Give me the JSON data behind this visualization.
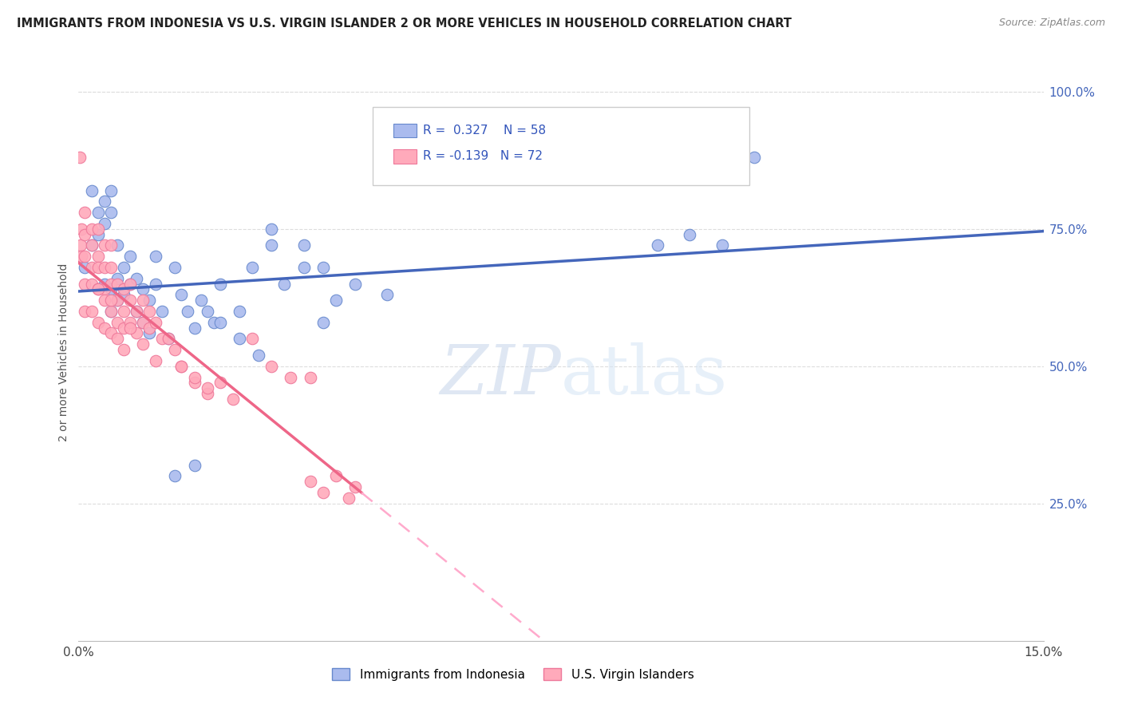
{
  "title": "IMMIGRANTS FROM INDONESIA VS U.S. VIRGIN ISLANDER 2 OR MORE VEHICLES IN HOUSEHOLD CORRELATION CHART",
  "source": "Source: ZipAtlas.com",
  "ylabel_label": "2 or more Vehicles in Household",
  "x_min": 0.0,
  "x_max": 0.15,
  "y_min": 0.0,
  "y_max": 1.05,
  "x_ticks": [
    0.0,
    0.03,
    0.06,
    0.09,
    0.12,
    0.15
  ],
  "y_ticks_right": [
    0.25,
    0.5,
    0.75,
    1.0
  ],
  "blue_R": 0.327,
  "blue_N": 58,
  "pink_R": -0.139,
  "pink_N": 72,
  "blue_fill_color": "#AABBEE",
  "blue_edge_color": "#6688CC",
  "pink_fill_color": "#FFAABB",
  "pink_edge_color": "#EE7799",
  "blue_line_color": "#4466BB",
  "pink_line_color": "#EE6688",
  "pink_dash_color": "#FFAACC",
  "watermark_text": "ZIPatlas",
  "legend_label_blue": "Immigrants from Indonesia",
  "legend_label_pink": "U.S. Virgin Islanders",
  "blue_scatter_x": [
    0.001,
    0.002,
    0.002,
    0.003,
    0.003,
    0.004,
    0.004,
    0.004,
    0.005,
    0.005,
    0.005,
    0.005,
    0.006,
    0.006,
    0.006,
    0.007,
    0.007,
    0.008,
    0.008,
    0.009,
    0.009,
    0.01,
    0.01,
    0.011,
    0.011,
    0.012,
    0.012,
    0.013,
    0.014,
    0.015,
    0.016,
    0.017,
    0.018,
    0.019,
    0.02,
    0.021,
    0.022,
    0.025,
    0.027,
    0.03,
    0.032,
    0.035,
    0.038,
    0.04,
    0.043,
    0.048,
    0.03,
    0.035,
    0.038,
    0.025,
    0.028,
    0.022,
    0.018,
    0.015,
    0.09,
    0.095,
    0.1,
    0.105
  ],
  "blue_scatter_y": [
    0.68,
    0.72,
    0.82,
    0.78,
    0.74,
    0.8,
    0.76,
    0.65,
    0.82,
    0.78,
    0.64,
    0.6,
    0.72,
    0.66,
    0.62,
    0.68,
    0.63,
    0.7,
    0.65,
    0.66,
    0.6,
    0.64,
    0.58,
    0.62,
    0.56,
    0.7,
    0.65,
    0.6,
    0.55,
    0.68,
    0.63,
    0.6,
    0.57,
    0.62,
    0.6,
    0.58,
    0.65,
    0.6,
    0.68,
    0.72,
    0.65,
    0.68,
    0.58,
    0.62,
    0.65,
    0.63,
    0.75,
    0.72,
    0.68,
    0.55,
    0.52,
    0.58,
    0.32,
    0.3,
    0.72,
    0.74,
    0.72,
    0.88
  ],
  "pink_scatter_x": [
    0.0002,
    0.0003,
    0.0005,
    0.0005,
    0.001,
    0.001,
    0.001,
    0.001,
    0.001,
    0.002,
    0.002,
    0.002,
    0.002,
    0.002,
    0.003,
    0.003,
    0.003,
    0.003,
    0.003,
    0.004,
    0.004,
    0.004,
    0.004,
    0.004,
    0.005,
    0.005,
    0.005,
    0.005,
    0.005,
    0.006,
    0.006,
    0.006,
    0.006,
    0.007,
    0.007,
    0.007,
    0.007,
    0.008,
    0.008,
    0.008,
    0.009,
    0.009,
    0.01,
    0.01,
    0.011,
    0.011,
    0.012,
    0.013,
    0.014,
    0.015,
    0.016,
    0.018,
    0.02,
    0.022,
    0.024,
    0.027,
    0.03,
    0.033,
    0.036,
    0.04,
    0.043,
    0.036,
    0.038,
    0.042,
    0.016,
    0.018,
    0.02,
    0.008,
    0.01,
    0.012,
    0.003,
    0.005
  ],
  "pink_scatter_y": [
    0.88,
    0.72,
    0.75,
    0.7,
    0.78,
    0.74,
    0.7,
    0.65,
    0.6,
    0.75,
    0.72,
    0.68,
    0.65,
    0.6,
    0.75,
    0.7,
    0.68,
    0.64,
    0.58,
    0.72,
    0.68,
    0.64,
    0.62,
    0.57,
    0.72,
    0.68,
    0.65,
    0.6,
    0.56,
    0.65,
    0.62,
    0.58,
    0.55,
    0.64,
    0.6,
    0.57,
    0.53,
    0.65,
    0.62,
    0.58,
    0.6,
    0.56,
    0.62,
    0.58,
    0.6,
    0.57,
    0.58,
    0.55,
    0.55,
    0.53,
    0.5,
    0.47,
    0.45,
    0.47,
    0.44,
    0.55,
    0.5,
    0.48,
    0.29,
    0.3,
    0.28,
    0.48,
    0.27,
    0.26,
    0.5,
    0.48,
    0.46,
    0.57,
    0.54,
    0.51,
    0.64,
    0.62
  ]
}
